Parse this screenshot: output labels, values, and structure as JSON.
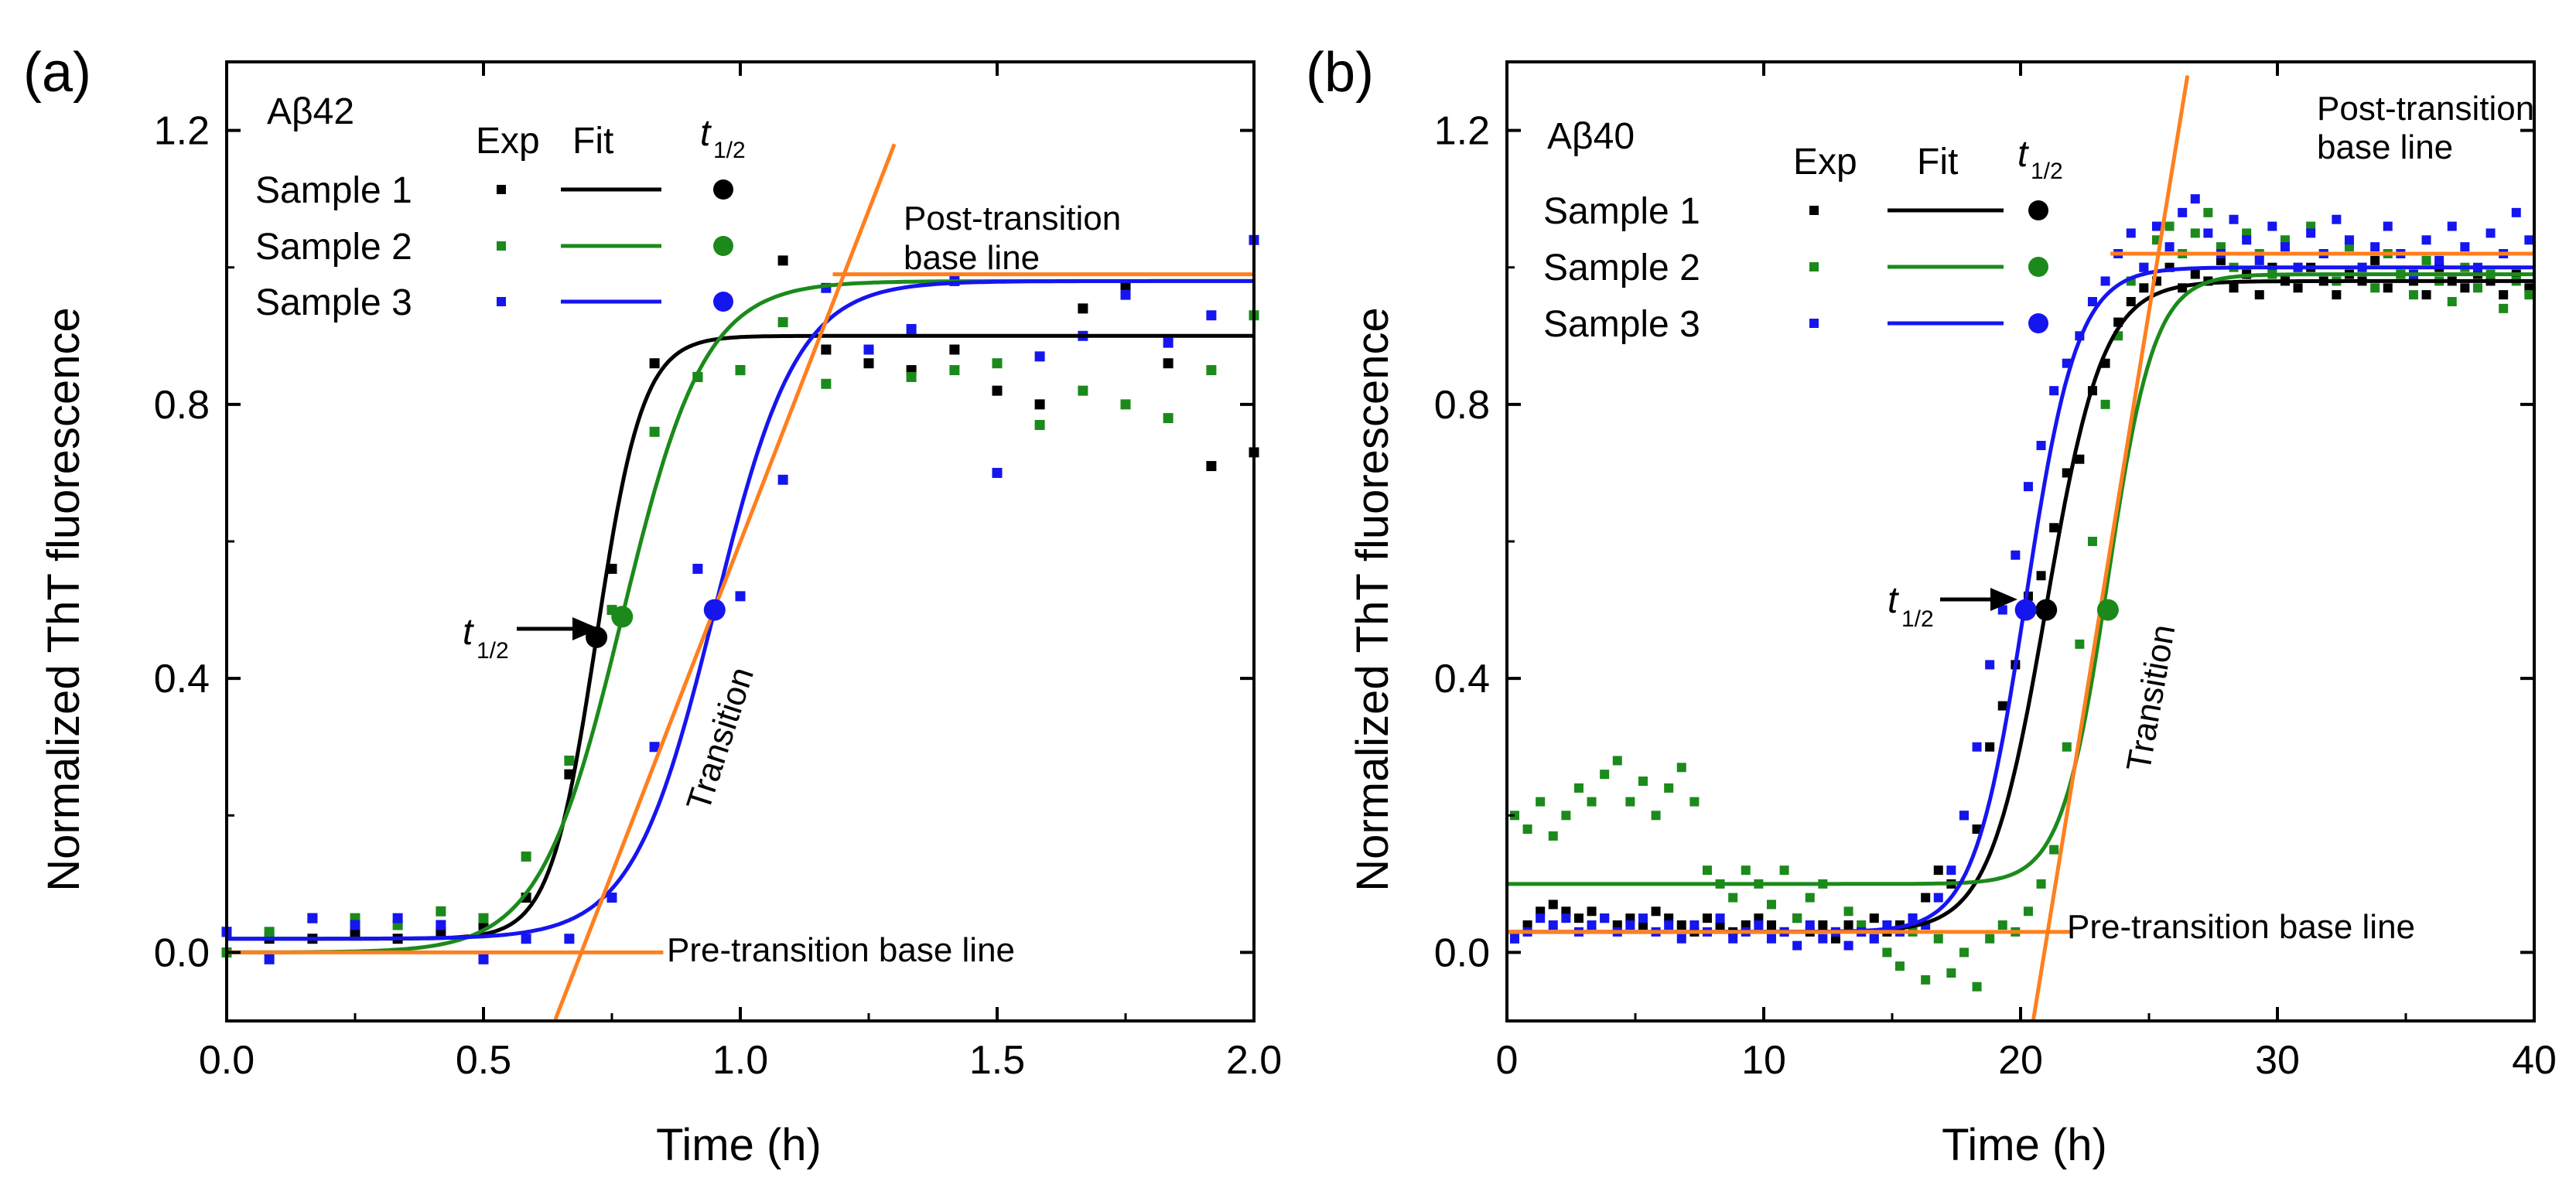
{
  "colors": {
    "sample1": "#000000",
    "sample2": "#1b8a1b",
    "sample3": "#1515f0",
    "guide": "#ff7f1e",
    "axis": "#000000"
  },
  "chart_data": [
    {
      "type": "scatter",
      "panel_label": "(a)",
      "title": "Aβ42",
      "xlabel": "Time (h)",
      "ylabel": "Normalized ThT fluorescence",
      "xlim": [
        0,
        2.0
      ],
      "ylim": [
        -0.1,
        1.3
      ],
      "xticks": [
        0,
        0.5,
        1.0,
        1.5,
        2.0
      ],
      "xtick_labels": [
        "0.0",
        "0.5",
        "1.0",
        "1.5",
        "2.0"
      ],
      "yticks": [
        0,
        0.4,
        0.8,
        1.2
      ],
      "ytick_labels": [
        "0.0",
        "0.4",
        "0.8",
        "1.2"
      ],
      "legend": {
        "headers": [
          "Exp",
          "Fit",
          "t",
          "1/2"
        ],
        "entries": [
          "Sample 1",
          "Sample 2",
          "Sample 3"
        ],
        "placement": "top-left"
      },
      "series": [
        {
          "name": "Sample 1",
          "color_key": "sample1",
          "exp_x": [
            0.0,
            0.083,
            0.167,
            0.25,
            0.333,
            0.417,
            0.5,
            0.583,
            0.667,
            0.75,
            0.833,
            0.917,
            1.0,
            1.083,
            1.167,
            1.25,
            1.333,
            1.417,
            1.5,
            1.583,
            1.667,
            1.75,
            1.833,
            1.917,
            2.0
          ],
          "exp_y": [
            0.03,
            0.02,
            0.02,
            0.03,
            0.02,
            0.03,
            0.04,
            0.08,
            0.26,
            0.56,
            0.86,
            0.84,
            0.85,
            1.01,
            0.88,
            0.86,
            0.85,
            0.88,
            0.82,
            0.8,
            0.94,
            0.97,
            0.86,
            0.71,
            0.73
          ],
          "fit": {
            "base": 0.02,
            "plateau": 0.9,
            "t_half": 0.72,
            "k": 0.045
          },
          "t_half": [
            0.72,
            0.46
          ]
        },
        {
          "name": "Sample 2",
          "color_key": "sample2",
          "exp_x": [
            0.0,
            0.083,
            0.167,
            0.25,
            0.333,
            0.417,
            0.5,
            0.583,
            0.667,
            0.75,
            0.833,
            0.917,
            1.0,
            1.083,
            1.167,
            1.25,
            1.333,
            1.417,
            1.5,
            1.583,
            1.667,
            1.75,
            1.833,
            1.917,
            2.0
          ],
          "exp_y": [
            0.0,
            0.03,
            0.05,
            0.05,
            0.04,
            0.06,
            0.05,
            0.14,
            0.28,
            0.5,
            0.76,
            0.84,
            0.85,
            0.92,
            0.83,
            0.88,
            0.84,
            0.85,
            0.86,
            0.77,
            0.82,
            0.8,
            0.78,
            0.85,
            0.93
          ],
          "fit": {
            "base": 0.0,
            "plateau": 0.98,
            "t_half": 0.77,
            "k": 0.08
          },
          "t_half": [
            0.77,
            0.49
          ]
        },
        {
          "name": "Sample 3",
          "color_key": "sample3",
          "exp_x": [
            0.0,
            0.083,
            0.167,
            0.25,
            0.333,
            0.417,
            0.5,
            0.583,
            0.667,
            0.75,
            0.833,
            0.917,
            1.0,
            1.083,
            1.167,
            1.25,
            1.333,
            1.417,
            1.5,
            1.583,
            1.667,
            1.75,
            1.833,
            1.917,
            2.0
          ],
          "exp_y": [
            0.03,
            -0.01,
            0.05,
            0.04,
            0.05,
            0.04,
            -0.01,
            0.02,
            0.02,
            0.08,
            0.3,
            0.56,
            0.52,
            0.69,
            0.97,
            0.88,
            0.91,
            0.98,
            0.7,
            0.87,
            0.9,
            0.96,
            0.89,
            0.93,
            1.04
          ],
          "fit": {
            "base": 0.02,
            "plateau": 0.98,
            "t_half": 0.95,
            "k": 0.08
          },
          "t_half": [
            0.95,
            0.5
          ]
        }
      ],
      "guides": {
        "pre_baseline": {
          "x": [
            0.0,
            0.85
          ],
          "y": [
            0.0,
            0.0
          ]
        },
        "post_baseline": {
          "x": [
            1.18,
            2.0
          ],
          "y": [
            0.99,
            0.99
          ]
        },
        "transition": {
          "x": [
            0.64,
            1.3
          ],
          "y": [
            -0.1,
            1.18
          ]
        }
      },
      "annotations": {
        "pre": "Pre-transition base line",
        "post_line1": "Post-transition",
        "post_line2": "base line",
        "transition": "Transition",
        "t_main": "t",
        "t_sub": "1/2"
      }
    },
    {
      "type": "scatter",
      "panel_label": "(b)",
      "title": "Aβ40",
      "xlabel": "Time (h)",
      "ylabel": "Normalized ThT fluorescence",
      "xlim": [
        0,
        40
      ],
      "ylim": [
        -0.1,
        1.3
      ],
      "xticks": [
        0,
        10,
        20,
        30,
        40
      ],
      "xtick_labels": [
        "0",
        "10",
        "20",
        "30",
        "40"
      ],
      "yticks": [
        0,
        0.4,
        0.8,
        1.2
      ],
      "ytick_labels": [
        "0.0",
        "0.4",
        "0.8",
        "1.2"
      ],
      "legend": {
        "headers": [
          "Exp",
          "Fit",
          "t",
          "1/2"
        ],
        "entries": [
          "Sample 1",
          "Sample 2",
          "Sample 3"
        ],
        "placement": "top-left"
      },
      "series": [
        {
          "name": "Sample 1",
          "color_key": "sample1",
          "exp_x": [
            0.3,
            0.8,
            1.3,
            1.8,
            2.3,
            2.8,
            3.3,
            3.8,
            4.3,
            4.8,
            5.3,
            5.8,
            6.3,
            6.8,
            7.3,
            7.8,
            8.3,
            8.8,
            9.3,
            9.8,
            10.3,
            10.8,
            11.3,
            11.8,
            12.3,
            12.8,
            13.3,
            13.8,
            14.3,
            14.8,
            15.3,
            15.8,
            16.3,
            16.8,
            17.3,
            17.8,
            18.3,
            18.8,
            19.3,
            19.8,
            20.3,
            20.8,
            21.3,
            21.8,
            22.3,
            22.8,
            23.3,
            23.8,
            24.3,
            24.8,
            25.3,
            25.8,
            26.3,
            26.8,
            27.3,
            27.8,
            28.3,
            28.8,
            29.3,
            29.8,
            30.3,
            30.8,
            31.3,
            31.8,
            32.3,
            32.8,
            33.3,
            33.8,
            34.3,
            34.8,
            35.3,
            35.8,
            36.3,
            36.8,
            37.3,
            37.8,
            38.3,
            38.8,
            39.3,
            39.8
          ],
          "exp_y": [
            0.02,
            0.04,
            0.06,
            0.07,
            0.06,
            0.05,
            0.06,
            0.05,
            0.04,
            0.05,
            0.04,
            0.06,
            0.05,
            0.04,
            0.03,
            0.05,
            0.04,
            0.03,
            0.04,
            0.05,
            0.04,
            0.03,
            0.05,
            0.03,
            0.04,
            0.02,
            0.04,
            0.03,
            0.05,
            0.03,
            0.04,
            0.05,
            0.08,
            0.12,
            0.1,
            0.2,
            0.18,
            0.3,
            0.36,
            0.42,
            0.52,
            0.55,
            0.62,
            0.7,
            0.72,
            0.82,
            0.86,
            0.92,
            0.95,
            0.97,
            0.98,
            1.0,
            0.97,
            0.99,
            0.98,
            1.01,
            0.97,
            0.99,
            0.96,
            1.0,
            0.98,
            0.97,
            1.0,
            0.98,
            0.96,
            0.99,
            0.98,
            1.01,
            0.97,
            0.99,
            0.98,
            0.96,
            1.0,
            0.98,
            0.97,
            0.99,
            0.98,
            0.96,
            0.99,
            0.97
          ],
          "fit": {
            "base": 0.03,
            "plateau": 0.98,
            "t_half": 21.0,
            "k": 1.1
          },
          "t_half": [
            21.0,
            0.5
          ]
        },
        {
          "name": "Sample 2",
          "color_key": "sample2",
          "exp_x": [
            0.3,
            0.8,
            1.3,
            1.8,
            2.3,
            2.8,
            3.3,
            3.8,
            4.3,
            4.8,
            5.3,
            5.8,
            6.3,
            6.8,
            7.3,
            7.8,
            8.3,
            8.8,
            9.3,
            9.8,
            10.3,
            10.8,
            11.3,
            11.8,
            12.3,
            12.8,
            13.3,
            13.8,
            14.3,
            14.8,
            15.3,
            15.8,
            16.3,
            16.8,
            17.3,
            17.8,
            18.3,
            18.8,
            19.3,
            19.8,
            20.3,
            20.8,
            21.3,
            21.8,
            22.3,
            22.8,
            23.3,
            23.8,
            24.3,
            24.8,
            25.3,
            25.8,
            26.3,
            26.8,
            27.3,
            27.8,
            28.3,
            28.8,
            29.3,
            29.8,
            30.3,
            30.8,
            31.3,
            31.8,
            32.3,
            32.8,
            33.3,
            33.8,
            34.3,
            34.8,
            35.3,
            35.8,
            36.3,
            36.8,
            37.3,
            37.8,
            38.3,
            38.8,
            39.3,
            39.8
          ],
          "exp_y": [
            0.2,
            0.18,
            0.22,
            0.17,
            0.2,
            0.24,
            0.22,
            0.26,
            0.28,
            0.22,
            0.25,
            0.2,
            0.24,
            0.27,
            0.22,
            0.12,
            0.1,
            0.08,
            0.12,
            0.1,
            0.07,
            0.12,
            0.05,
            0.08,
            0.1,
            0.03,
            0.06,
            0.04,
            0.02,
            0.0,
            -0.02,
            0.03,
            -0.04,
            0.02,
            -0.03,
            0.0,
            -0.05,
            0.02,
            0.04,
            0.03,
            0.06,
            0.1,
            0.15,
            0.3,
            0.45,
            0.6,
            0.8,
            0.9,
            0.98,
            1.0,
            1.04,
            1.06,
            1.02,
            1.05,
            1.08,
            1.03,
            1.0,
            1.05,
            1.02,
            0.99,
            1.04,
            1.0,
            1.06,
            1.02,
            0.98,
            1.03,
            1.0,
            0.97,
            1.02,
            0.99,
            0.96,
            1.01,
            0.98,
            0.95,
            1.0,
            0.97,
            0.99,
            0.94,
            0.98,
            0.96
          ],
          "fit": {
            "base": 0.1,
            "plateau": 0.99,
            "t_half": 23.4,
            "k": 0.9
          },
          "t_half": [
            23.4,
            0.5
          ]
        },
        {
          "name": "Sample 3",
          "color_key": "sample3",
          "exp_x": [
            0.3,
            0.8,
            1.3,
            1.8,
            2.3,
            2.8,
            3.3,
            3.8,
            4.3,
            4.8,
            5.3,
            5.8,
            6.3,
            6.8,
            7.3,
            7.8,
            8.3,
            8.8,
            9.3,
            9.8,
            10.3,
            10.8,
            11.3,
            11.8,
            12.3,
            12.8,
            13.3,
            13.8,
            14.3,
            14.8,
            15.3,
            15.8,
            16.3,
            16.8,
            17.3,
            17.8,
            18.3,
            18.8,
            19.3,
            19.8,
            20.3,
            20.8,
            21.3,
            21.8,
            22.3,
            22.8,
            23.3,
            23.8,
            24.3,
            24.8,
            25.3,
            25.8,
            26.3,
            26.8,
            27.3,
            27.8,
            28.3,
            28.8,
            29.3,
            29.8,
            30.3,
            30.8,
            31.3,
            31.8,
            32.3,
            32.8,
            33.3,
            33.8,
            34.3,
            34.8,
            35.3,
            35.8,
            36.3,
            36.8,
            37.3,
            37.8,
            38.3,
            38.8,
            39.3,
            39.8
          ],
          "exp_y": [
            0.02,
            0.03,
            0.05,
            0.04,
            0.05,
            0.03,
            0.04,
            0.05,
            0.03,
            0.04,
            0.05,
            0.03,
            0.04,
            0.02,
            0.04,
            0.03,
            0.05,
            0.02,
            0.03,
            0.04,
            0.02,
            0.03,
            0.01,
            0.04,
            0.02,
            0.03,
            0.01,
            0.03,
            0.02,
            0.04,
            0.03,
            0.05,
            0.04,
            0.08,
            0.12,
            0.2,
            0.3,
            0.42,
            0.5,
            0.58,
            0.68,
            0.74,
            0.82,
            0.86,
            0.9,
            0.95,
            0.98,
            1.02,
            1.05,
            1.0,
            1.06,
            1.03,
            1.08,
            1.1,
            1.05,
            1.02,
            1.07,
            1.04,
            1.01,
            1.06,
            1.03,
            1.0,
            1.05,
            1.02,
            1.07,
            1.04,
            1.0,
            1.03,
            1.06,
            1.02,
            0.99,
            1.04,
            1.01,
            1.06,
            1.03,
            1.0,
            1.05,
            1.02,
            1.08,
            1.04
          ],
          "fit": {
            "base": 0.03,
            "plateau": 1.0,
            "t_half": 20.2,
            "k": 1.0
          },
          "t_half": [
            20.2,
            0.5
          ]
        }
      ],
      "guides": {
        "pre_baseline": {
          "x": [
            0.0,
            22.0
          ],
          "y": [
            0.03,
            0.03
          ]
        },
        "post_baseline": {
          "x": [
            23.5,
            40.0
          ],
          "y": [
            1.02,
            1.02
          ]
        },
        "transition": {
          "x": [
            20.5,
            26.5
          ],
          "y": [
            -0.1,
            1.28
          ]
        }
      },
      "annotations": {
        "pre": "Pre-transition base line",
        "post_line1": "Post-transition",
        "post_line2": "base line",
        "transition": "Transition",
        "t_main": "t",
        "t_sub": "1/2"
      }
    }
  ]
}
